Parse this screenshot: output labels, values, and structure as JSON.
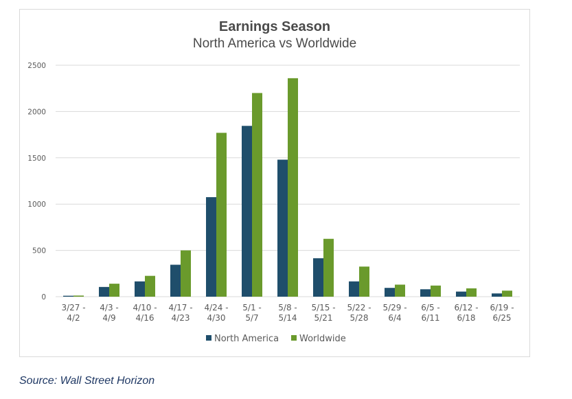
{
  "source": "Source: Wall Street Horizon",
  "colors": {
    "north_america": "#1f4e6b",
    "worldwide": "#6a9a2c",
    "grid": "#d9d9d9"
  },
  "chart_data": {
    "type": "bar",
    "title": "Earnings Season",
    "subtitle": "North America vs Worldwide",
    "xlabel": "",
    "ylabel": "",
    "ylim": [
      0,
      2500
    ],
    "yticks": [
      0,
      500,
      1000,
      1500,
      2000,
      2500
    ],
    "grid": true,
    "legend_position": "bottom",
    "categories": [
      [
        "3/27 -",
        "4/2"
      ],
      [
        "4/3 -",
        "4/9"
      ],
      [
        "4/10 -",
        "4/16"
      ],
      [
        "4/17 -",
        "4/23"
      ],
      [
        "4/24 -",
        "4/30"
      ],
      [
        "5/1 -",
        "5/7"
      ],
      [
        "5/8 -",
        "5/14"
      ],
      [
        "5/15 -",
        "5/21"
      ],
      [
        "5/22 -",
        "5/28"
      ],
      [
        "5/29 -",
        "6/4"
      ],
      [
        "6/5 -",
        "6/11"
      ],
      [
        "6/12 -",
        "6/18"
      ],
      [
        "6/19 -",
        "6/25"
      ]
    ],
    "series": [
      {
        "name": "North America",
        "values": [
          10,
          105,
          165,
          345,
          1075,
          1845,
          1480,
          415,
          165,
          95,
          80,
          55,
          35
        ]
      },
      {
        "name": "Worldwide",
        "values": [
          12,
          140,
          225,
          500,
          1770,
          2200,
          2360,
          625,
          325,
          130,
          120,
          90,
          65
        ]
      }
    ]
  }
}
